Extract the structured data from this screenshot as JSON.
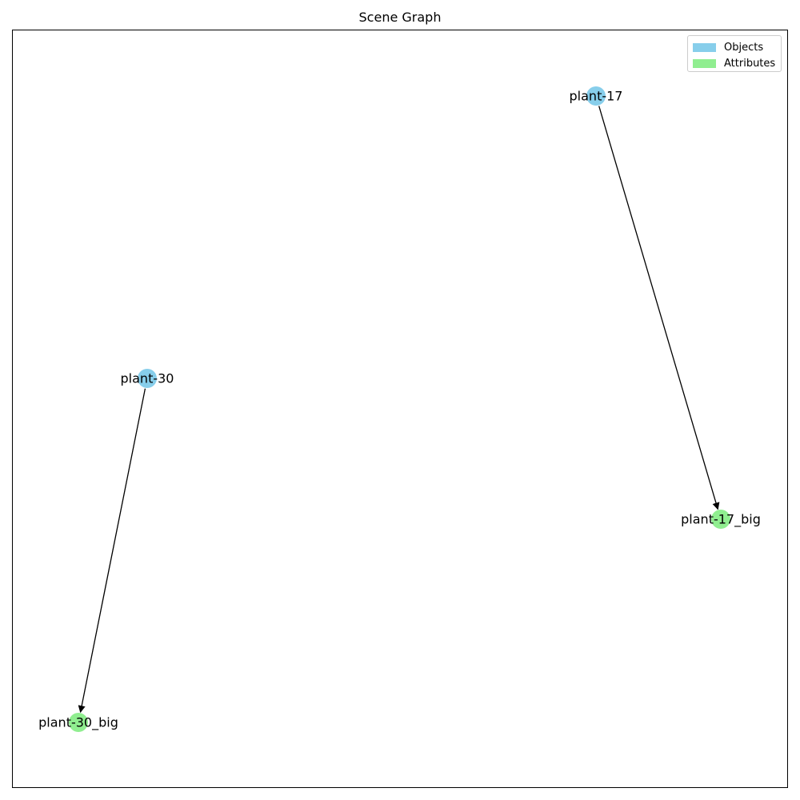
{
  "title": "Scene Graph",
  "colors": {
    "object": "#87ceeb",
    "attribute": "#90ee90",
    "edge": "#000000"
  },
  "legend": {
    "placement": "top-right",
    "entries": [
      {
        "label": "Objects",
        "color": "#87ceeb"
      },
      {
        "label": "Attributes",
        "color": "#90ee90"
      }
    ]
  },
  "nodes": [
    {
      "id": "plant-17",
      "label": "plant-17",
      "kind": "object"
    },
    {
      "id": "plant-17_big",
      "label": "plant-17_big",
      "kind": "attribute"
    },
    {
      "id": "plant-30",
      "label": "plant-30",
      "kind": "object"
    },
    {
      "id": "plant-30_big",
      "label": "plant-30_big",
      "kind": "attribute"
    }
  ],
  "edges": [
    {
      "from": "plant-17",
      "to": "plant-17_big"
    },
    {
      "from": "plant-30",
      "to": "plant-30_big"
    }
  ]
}
